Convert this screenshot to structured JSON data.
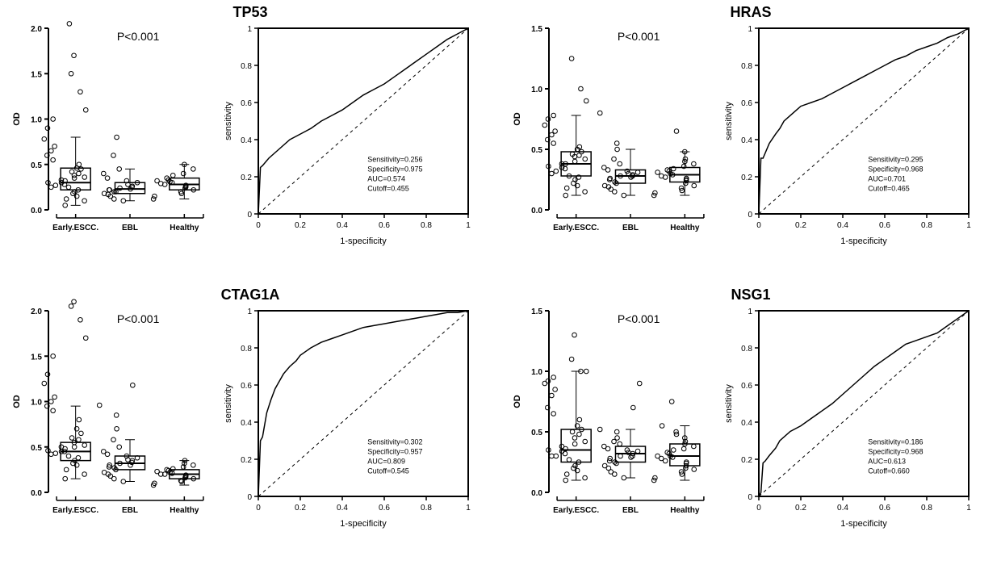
{
  "panels": [
    {
      "title": "TP53",
      "pvalue": "P<0.001",
      "boxplot": {
        "ylim": [
          0.0,
          2.0
        ],
        "ytick_step": 0.5,
        "ylabel": "OD",
        "categories": [
          "Early.ESCC.",
          "EBL",
          "Healthy"
        ],
        "boxes": [
          {
            "q1": 0.22,
            "med": 0.3,
            "q3": 0.46,
            "wl": 0.05,
            "wh": 0.8
          },
          {
            "q1": 0.18,
            "med": 0.23,
            "q3": 0.3,
            "wl": 0.1,
            "wh": 0.45
          },
          {
            "q1": 0.22,
            "med": 0.28,
            "q3": 0.35,
            "wl": 0.12,
            "wh": 0.5
          }
        ],
        "jitter": [
          [
            0.05,
            0.1,
            0.12,
            0.15,
            0.18,
            0.2,
            0.22,
            0.25,
            0.25,
            0.27,
            0.28,
            0.3,
            0.3,
            0.32,
            0.33,
            0.35,
            0.36,
            0.38,
            0.4,
            0.42,
            0.45,
            0.46,
            0.5,
            0.55,
            0.6,
            0.65,
            0.7,
            0.78,
            0.9,
            1.0,
            1.1,
            1.3,
            1.5,
            1.7,
            2.05
          ],
          [
            0.1,
            0.12,
            0.15,
            0.17,
            0.18,
            0.2,
            0.2,
            0.22,
            0.22,
            0.23,
            0.24,
            0.25,
            0.26,
            0.28,
            0.3,
            0.32,
            0.35,
            0.4,
            0.45,
            0.6,
            0.8
          ],
          [
            0.12,
            0.15,
            0.18,
            0.2,
            0.22,
            0.24,
            0.25,
            0.26,
            0.27,
            0.28,
            0.29,
            0.3,
            0.31,
            0.32,
            0.33,
            0.35,
            0.38,
            0.4,
            0.45,
            0.5
          ]
        ]
      },
      "roc": {
        "curve": [
          [
            0,
            0
          ],
          [
            0.01,
            0.25
          ],
          [
            0.02,
            0.26
          ],
          [
            0.05,
            0.3
          ],
          [
            0.1,
            0.35
          ],
          [
            0.15,
            0.4
          ],
          [
            0.2,
            0.43
          ],
          [
            0.25,
            0.46
          ],
          [
            0.3,
            0.5
          ],
          [
            0.35,
            0.53
          ],
          [
            0.4,
            0.56
          ],
          [
            0.45,
            0.6
          ],
          [
            0.5,
            0.64
          ],
          [
            0.55,
            0.67
          ],
          [
            0.6,
            0.7
          ],
          [
            0.65,
            0.74
          ],
          [
            0.7,
            0.78
          ],
          [
            0.75,
            0.82
          ],
          [
            0.8,
            0.86
          ],
          [
            0.85,
            0.9
          ],
          [
            0.9,
            0.94
          ],
          [
            0.95,
            0.97
          ],
          [
            1,
            1
          ]
        ],
        "stats": {
          "Sensitivity": "0.256",
          "Specificity": "0.975",
          "AUC": "0.574",
          "Cutoff": "0.455"
        }
      }
    },
    {
      "title": "HRAS",
      "pvalue": "P<0.001",
      "boxplot": {
        "ylim": [
          0.0,
          1.5
        ],
        "ytick_step": 0.5,
        "ylabel": "OD",
        "categories": [
          "Early.ESCC.",
          "EBL",
          "Healthy"
        ],
        "boxes": [
          {
            "q1": 0.28,
            "med": 0.38,
            "q3": 0.48,
            "wl": 0.12,
            "wh": 0.78
          },
          {
            "q1": 0.22,
            "med": 0.28,
            "q3": 0.33,
            "wl": 0.12,
            "wh": 0.5
          },
          {
            "q1": 0.23,
            "med": 0.29,
            "q3": 0.35,
            "wl": 0.12,
            "wh": 0.48
          }
        ],
        "jitter": [
          [
            0.12,
            0.15,
            0.18,
            0.2,
            0.22,
            0.25,
            0.27,
            0.28,
            0.3,
            0.32,
            0.34,
            0.35,
            0.36,
            0.38,
            0.38,
            0.4,
            0.42,
            0.44,
            0.45,
            0.46,
            0.48,
            0.5,
            0.52,
            0.55,
            0.58,
            0.62,
            0.65,
            0.7,
            0.75,
            0.78,
            0.9,
            1.0,
            1.25
          ],
          [
            0.12,
            0.15,
            0.17,
            0.19,
            0.2,
            0.22,
            0.23,
            0.25,
            0.26,
            0.27,
            0.28,
            0.28,
            0.29,
            0.3,
            0.31,
            0.32,
            0.33,
            0.35,
            0.38,
            0.42,
            0.5,
            0.55,
            0.8
          ],
          [
            0.12,
            0.14,
            0.16,
            0.18,
            0.2,
            0.22,
            0.24,
            0.25,
            0.26,
            0.27,
            0.28,
            0.29,
            0.3,
            0.31,
            0.32,
            0.33,
            0.34,
            0.36,
            0.38,
            0.4,
            0.42,
            0.48,
            0.65
          ]
        ]
      },
      "roc": {
        "curve": [
          [
            0,
            0
          ],
          [
            0.01,
            0.3
          ],
          [
            0.02,
            0.3
          ],
          [
            0.05,
            0.38
          ],
          [
            0.08,
            0.43
          ],
          [
            0.1,
            0.46
          ],
          [
            0.12,
            0.5
          ],
          [
            0.15,
            0.53
          ],
          [
            0.18,
            0.56
          ],
          [
            0.2,
            0.58
          ],
          [
            0.25,
            0.6
          ],
          [
            0.3,
            0.62
          ],
          [
            0.35,
            0.65
          ],
          [
            0.4,
            0.68
          ],
          [
            0.45,
            0.71
          ],
          [
            0.5,
            0.74
          ],
          [
            0.55,
            0.77
          ],
          [
            0.6,
            0.8
          ],
          [
            0.65,
            0.83
          ],
          [
            0.7,
            0.85
          ],
          [
            0.75,
            0.88
          ],
          [
            0.8,
            0.9
          ],
          [
            0.85,
            0.92
          ],
          [
            0.9,
            0.95
          ],
          [
            0.95,
            0.97
          ],
          [
            1,
            1
          ]
        ],
        "stats": {
          "Sensitivity": "0.295",
          "Specificity": "0.968",
          "AUC": "0.701",
          "Cutoff": "0.465"
        }
      }
    },
    {
      "title": "CTAG1A",
      "pvalue": "P<0.001",
      "boxplot": {
        "ylim": [
          0.0,
          2.0
        ],
        "ytick_step": 0.5,
        "ylabel": "OD",
        "categories": [
          "Early.ESCC.",
          "EBL",
          "Healthy"
        ],
        "boxes": [
          {
            "q1": 0.35,
            "med": 0.45,
            "q3": 0.55,
            "wl": 0.15,
            "wh": 0.95
          },
          {
            "q1": 0.25,
            "med": 0.32,
            "q3": 0.4,
            "wl": 0.12,
            "wh": 0.58
          },
          {
            "q1": 0.15,
            "med": 0.2,
            "q3": 0.25,
            "wl": 0.08,
            "wh": 0.35
          }
        ],
        "jitter": [
          [
            0.15,
            0.2,
            0.25,
            0.3,
            0.32,
            0.35,
            0.38,
            0.4,
            0.42,
            0.43,
            0.45,
            0.45,
            0.46,
            0.48,
            0.5,
            0.5,
            0.52,
            0.55,
            0.58,
            0.6,
            0.65,
            0.7,
            0.8,
            0.9,
            0.95,
            1.0,
            1.05,
            1.2,
            1.3,
            1.5,
            1.7,
            1.9,
            2.05,
            2.1
          ],
          [
            0.12,
            0.15,
            0.18,
            0.2,
            0.22,
            0.25,
            0.27,
            0.28,
            0.3,
            0.3,
            0.32,
            0.33,
            0.35,
            0.36,
            0.38,
            0.4,
            0.42,
            0.45,
            0.5,
            0.58,
            0.7,
            0.85,
            0.96,
            1.18
          ],
          [
            0.08,
            0.1,
            0.12,
            0.13,
            0.15,
            0.16,
            0.17,
            0.18,
            0.19,
            0.2,
            0.2,
            0.21,
            0.22,
            0.23,
            0.24,
            0.25,
            0.26,
            0.28,
            0.3,
            0.32,
            0.35
          ]
        ]
      },
      "roc": {
        "curve": [
          [
            0,
            0
          ],
          [
            0.01,
            0.3
          ],
          [
            0.02,
            0.32
          ],
          [
            0.04,
            0.45
          ],
          [
            0.06,
            0.52
          ],
          [
            0.08,
            0.58
          ],
          [
            0.1,
            0.62
          ],
          [
            0.12,
            0.66
          ],
          [
            0.15,
            0.7
          ],
          [
            0.18,
            0.73
          ],
          [
            0.2,
            0.76
          ],
          [
            0.25,
            0.8
          ],
          [
            0.3,
            0.83
          ],
          [
            0.35,
            0.85
          ],
          [
            0.4,
            0.87
          ],
          [
            0.45,
            0.89
          ],
          [
            0.5,
            0.91
          ],
          [
            0.55,
            0.92
          ],
          [
            0.6,
            0.93
          ],
          [
            0.65,
            0.94
          ],
          [
            0.7,
            0.95
          ],
          [
            0.75,
            0.96
          ],
          [
            0.8,
            0.97
          ],
          [
            0.85,
            0.98
          ],
          [
            0.9,
            0.99
          ],
          [
            0.95,
            0.99
          ],
          [
            1,
            1
          ]
        ],
        "stats": {
          "Sensitivity": "0.302",
          "Specificity": "0.957",
          "AUC": "0.809",
          "Cutoff": "0.545"
        }
      }
    },
    {
      "title": "NSG1",
      "pvalue": "P<0.001",
      "boxplot": {
        "ylim": [
          0.0,
          1.5
        ],
        "ytick_step": 0.5,
        "ylabel": "OD",
        "categories": [
          "Early.ESCC.",
          "EBL",
          "Healthy"
        ],
        "boxes": [
          {
            "q1": 0.25,
            "med": 0.35,
            "q3": 0.52,
            "wl": 0.1,
            "wh": 1.0
          },
          {
            "q1": 0.25,
            "med": 0.32,
            "q3": 0.38,
            "wl": 0.12,
            "wh": 0.52
          },
          {
            "q1": 0.22,
            "med": 0.3,
            "q3": 0.4,
            "wl": 0.1,
            "wh": 0.55
          }
        ],
        "jitter": [
          [
            0.1,
            0.12,
            0.15,
            0.18,
            0.2,
            0.22,
            0.25,
            0.27,
            0.3,
            0.3,
            0.32,
            0.34,
            0.35,
            0.36,
            0.38,
            0.4,
            0.42,
            0.45,
            0.48,
            0.5,
            0.52,
            0.55,
            0.6,
            0.65,
            0.7,
            0.8,
            0.85,
            0.9,
            0.92,
            0.95,
            1.0,
            1.0,
            1.1,
            1.3
          ],
          [
            0.12,
            0.15,
            0.17,
            0.2,
            0.22,
            0.24,
            0.25,
            0.26,
            0.28,
            0.29,
            0.3,
            0.3,
            0.32,
            0.33,
            0.34,
            0.35,
            0.36,
            0.38,
            0.4,
            0.42,
            0.45,
            0.5,
            0.52,
            0.7,
            0.9
          ],
          [
            0.1,
            0.12,
            0.15,
            0.17,
            0.19,
            0.2,
            0.22,
            0.24,
            0.25,
            0.26,
            0.28,
            0.29,
            0.3,
            0.3,
            0.32,
            0.33,
            0.35,
            0.36,
            0.38,
            0.4,
            0.42,
            0.45,
            0.48,
            0.5,
            0.55,
            0.75
          ]
        ]
      },
      "roc": {
        "curve": [
          [
            0,
            0
          ],
          [
            0.01,
            0.02
          ],
          [
            0.02,
            0.18
          ],
          [
            0.03,
            0.19
          ],
          [
            0.05,
            0.22
          ],
          [
            0.08,
            0.26
          ],
          [
            0.1,
            0.3
          ],
          [
            0.15,
            0.35
          ],
          [
            0.2,
            0.38
          ],
          [
            0.25,
            0.42
          ],
          [
            0.3,
            0.46
          ],
          [
            0.35,
            0.5
          ],
          [
            0.4,
            0.55
          ],
          [
            0.45,
            0.6
          ],
          [
            0.5,
            0.65
          ],
          [
            0.55,
            0.7
          ],
          [
            0.6,
            0.74
          ],
          [
            0.65,
            0.78
          ],
          [
            0.7,
            0.82
          ],
          [
            0.75,
            0.84
          ],
          [
            0.8,
            0.86
          ],
          [
            0.85,
            0.88
          ],
          [
            0.9,
            0.92
          ],
          [
            0.95,
            0.96
          ],
          [
            1,
            1
          ]
        ],
        "stats": {
          "Sensitivity": "0.186",
          "Specificity": "0.968",
          "AUC": "0.613",
          "Cutoff": "0.660"
        }
      }
    }
  ],
  "style": {
    "box_fill": "#ffffff",
    "box_stroke": "#000000",
    "box_lw": 1.5,
    "jitter_color": "#000000",
    "jitter_size": 2.8,
    "axis_color": "#000000",
    "axis_lw": 2,
    "roc_lw": 1.5,
    "diag_dash": "4,4",
    "font_axis": 11,
    "font_tick": 10,
    "font_stats": 9,
    "font_title": 18,
    "font_pvalue": 14
  }
}
